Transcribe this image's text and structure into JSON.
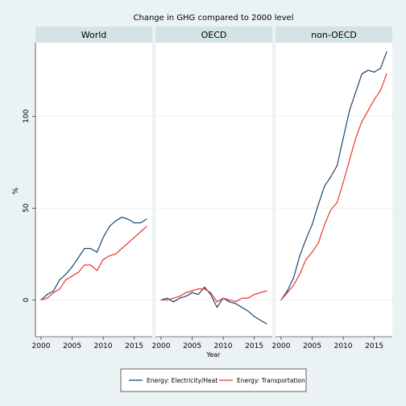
{
  "chart_data": {
    "type": "line",
    "title": "Change in GHG compared to 2000 level",
    "xlabel": "Year",
    "ylabel": "%",
    "xlim": [
      1999,
      2018
    ],
    "ylim": [
      -20,
      140
    ],
    "xticks": [
      2000,
      2005,
      2010,
      2015
    ],
    "yticks": [
      0,
      50,
      100
    ],
    "grid": true,
    "legend": "bottom",
    "years": [
      2000,
      2001,
      2002,
      2003,
      2004,
      2005,
      2006,
      2007,
      2008,
      2009,
      2010,
      2011,
      2012,
      2013,
      2014,
      2015,
      2016,
      2017
    ],
    "panels": [
      {
        "name": "World",
        "series": [
          {
            "name": "Energy: Electricity/Heat",
            "color": "#1a476f",
            "values": [
              0,
              3,
              5,
              11,
              14,
              18,
              23,
              28,
              28,
              26,
              34,
              40,
              43,
              45,
              44,
              42,
              42,
              44
            ]
          },
          {
            "name": "Energy: Transportation",
            "color": "#e8372c",
            "values": [
              0,
              1,
              4,
              6,
              11,
              13,
              15,
              19,
              19,
              16,
              22,
              24,
              25,
              28,
              31,
              34,
              37,
              40
            ]
          }
        ]
      },
      {
        "name": "OECD",
        "series": [
          {
            "name": "Energy: Electricity/Heat",
            "color": "#1a476f",
            "values": [
              0,
              1,
              -1,
              1,
              2,
              4,
              3,
              7,
              3,
              -4,
              1,
              -1,
              -2,
              -4,
              -6,
              -9,
              -11,
              -13
            ]
          },
          {
            "name": "Energy: Transportation",
            "color": "#e8372c",
            "values": [
              0,
              0,
              1,
              2,
              4,
              5,
              6,
              6,
              4,
              -1,
              1,
              0,
              -1,
              1,
              1,
              3,
              4,
              5
            ]
          }
        ]
      },
      {
        "name": "non-OECD",
        "series": [
          {
            "name": "Energy: Electricity/Heat",
            "color": "#1a476f",
            "values": [
              0,
              5,
              12,
              24,
              33,
              41,
              52,
              62,
              67,
              73,
              88,
              103,
              113,
              123,
              125,
              124,
              126,
              135
            ]
          },
          {
            "name": "Energy: Transportation",
            "color": "#e8372c",
            "values": [
              0,
              4,
              8,
              14,
              22,
              26,
              31,
              41,
              49,
              53,
              64,
              76,
              88,
              97,
              103,
              109,
              114,
              123
            ]
          }
        ]
      }
    ]
  }
}
